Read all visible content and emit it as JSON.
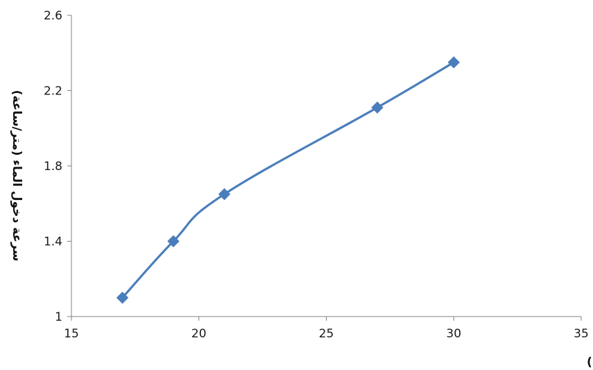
{
  "chart_data": {
    "type": "line",
    "title": "",
    "xlabel": "زمن إلتقاط الماقنيتيت (دقيقة)",
    "ylabel": "سرعة دخول الماء (متر/ساعة)",
    "xlim": [
      15,
      35
    ],
    "ylim": [
      1,
      2.6
    ],
    "xticks": [
      "15",
      "20",
      "25",
      "30",
      "35"
    ],
    "yticks": [
      "1",
      "1.4",
      "1.8",
      "2.2",
      "2.6"
    ],
    "grid": false,
    "legend": "none",
    "series": [
      {
        "color": "#4a7ebb",
        "marker": "diamond",
        "smooth": true,
        "x": [
          17,
          19,
          21,
          27,
          30
        ],
        "y": [
          1.1,
          1.4,
          1.65,
          2.11,
          2.35
        ]
      }
    ]
  }
}
